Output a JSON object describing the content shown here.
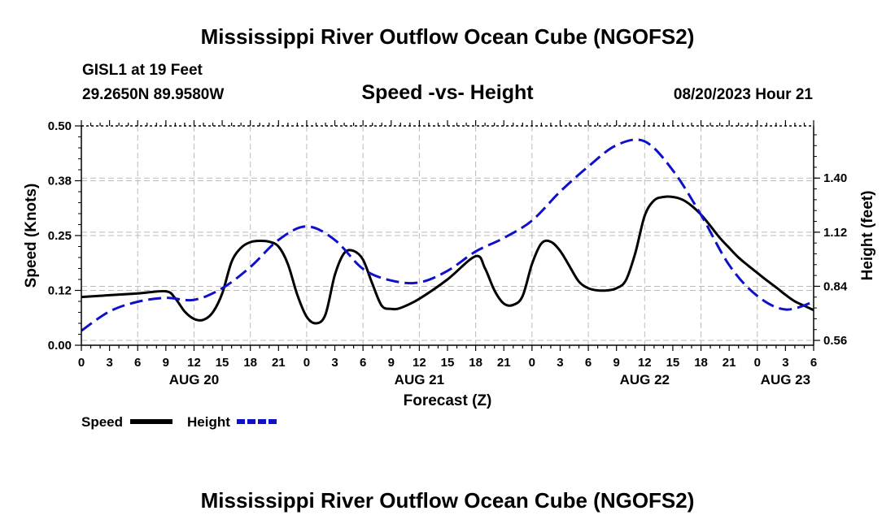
{
  "page": {
    "title_top": "Mississippi River Outflow Ocean Cube (NGOFS2)",
    "title_bottom": "Mississippi River Outflow Ocean Cube (NGOFS2)",
    "station": "GISL1 at 19 Feet",
    "coords": "29.2650N  89.9580W",
    "subtitle": "Speed -vs- Height",
    "datetime": "08/20/2023 Hour 21"
  },
  "legend": {
    "speed_label": "Speed",
    "height_label": "Height"
  },
  "chart_data": {
    "type": "line",
    "title": "Speed -vs- Height",
    "xlabel": "Forecast (Z)",
    "ylabel_left": "Speed (Knots)",
    "ylabel_right": "Height (feet)",
    "colors": {
      "speed": "#000000",
      "height": "#1010cc",
      "grid": "#bbbbbb"
    },
    "x_range": [
      0,
      78
    ],
    "x_ticks": [
      0,
      3,
      6,
      9,
      12,
      15,
      18,
      21,
      24,
      27,
      30,
      33,
      36,
      39,
      42,
      45,
      48,
      51,
      54,
      57,
      60,
      63,
      66,
      69,
      72,
      75,
      78
    ],
    "x_tick_labels": [
      "0",
      "3",
      "6",
      "9",
      "12",
      "15",
      "18",
      "21",
      "0",
      "3",
      "6",
      "9",
      "12",
      "15",
      "18",
      "21",
      "0",
      "3",
      "6",
      "9",
      "12",
      "15",
      "18",
      "21",
      "0",
      "3",
      "6"
    ],
    "date_labels": [
      {
        "x": 12,
        "label": "AUG 20"
      },
      {
        "x": 36,
        "label": "AUG 21"
      },
      {
        "x": 60,
        "label": "AUG 22"
      },
      {
        "x": 75,
        "label": "AUG 23"
      }
    ],
    "y_left_range": [
      0,
      0.5
    ],
    "y_left_ticks": [
      0,
      0.125,
      0.25,
      0.375,
      0.5
    ],
    "y_left_tick_labels": [
      "0.00",
      "0.12",
      "0.25",
      "0.38",
      "0.50"
    ],
    "y_right_range": [
      0.535,
      1.67
    ],
    "y_right_ticks": [
      0.56,
      0.84,
      1.12,
      1.4
    ],
    "y_right_tick_labels": [
      "0.56",
      "0.84",
      "1.12",
      "1.40"
    ],
    "series": [
      {
        "name": "Speed",
        "axis": "left",
        "style": "solid",
        "x": [
          0,
          3,
          6,
          9,
          10,
          11,
          12,
          13,
          14,
          15,
          16,
          17,
          18,
          19,
          20,
          21,
          22,
          23,
          24,
          25,
          26,
          27,
          28,
          29,
          30,
          31,
          32,
          33,
          34,
          36,
          39,
          42,
          43,
          44,
          45,
          46,
          47,
          48,
          49,
          50,
          51,
          52,
          53,
          54,
          55,
          56,
          57,
          58,
          59,
          60,
          61,
          62,
          63,
          64,
          65,
          66,
          67,
          68,
          69,
          70,
          71,
          72,
          73,
          74,
          75,
          76,
          77,
          78
        ],
        "values": [
          0.11,
          0.114,
          0.118,
          0.123,
          0.107,
          0.077,
          0.06,
          0.058,
          0.075,
          0.118,
          0.19,
          0.222,
          0.235,
          0.238,
          0.236,
          0.225,
          0.185,
          0.115,
          0.065,
          0.05,
          0.07,
          0.16,
          0.21,
          0.215,
          0.195,
          0.14,
          0.09,
          0.083,
          0.085,
          0.106,
          0.15,
          0.203,
          0.175,
          0.125,
          0.095,
          0.092,
          0.112,
          0.185,
          0.232,
          0.236,
          0.215,
          0.18,
          0.145,
          0.13,
          0.125,
          0.125,
          0.13,
          0.148,
          0.21,
          0.295,
          0.33,
          0.338,
          0.338,
          0.332,
          0.318,
          0.298,
          0.272,
          0.245,
          0.222,
          0.2,
          0.182,
          0.165,
          0.148,
          0.132,
          0.115,
          0.1,
          0.09,
          0.08
        ]
      },
      {
        "name": "Height",
        "axis": "right",
        "style": "dashed",
        "x": [
          0,
          3,
          6,
          9,
          12,
          15,
          18,
          21,
          24,
          27,
          30,
          33,
          36,
          39,
          42,
          45,
          48,
          51,
          54,
          57,
          60,
          63,
          66,
          69,
          72,
          75,
          78
        ],
        "values": [
          0.61,
          0.71,
          0.76,
          0.78,
          0.77,
          0.83,
          0.94,
          1.08,
          1.15,
          1.08,
          0.93,
          0.87,
          0.86,
          0.92,
          1.02,
          1.09,
          1.18,
          1.33,
          1.46,
          1.57,
          1.59,
          1.44,
          1.21,
          0.95,
          0.79,
          0.72,
          0.76
        ]
      }
    ]
  }
}
